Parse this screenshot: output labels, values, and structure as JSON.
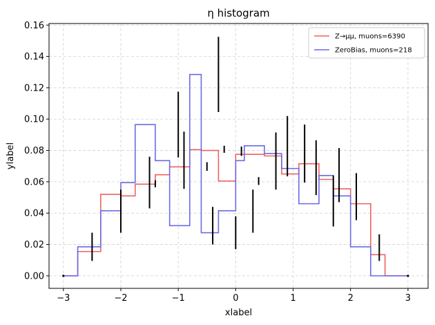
{
  "chart_data": {
    "type": "histogram",
    "title": "η histogram",
    "xlabel": "xlabel",
    "ylabel": "ylabel",
    "xlim": [
      -3.25,
      3.35
    ],
    "ylim": [
      -0.008,
      0.161
    ],
    "xticks": [
      -3,
      -2,
      -1,
      0,
      1,
      2,
      3
    ],
    "yticks": [
      0.0,
      0.02,
      0.04,
      0.06,
      0.08,
      0.1,
      0.12,
      0.14,
      0.16
    ],
    "grid": true,
    "legend_position": "top-right",
    "bin_edges": [
      -3.0,
      -2.75,
      -2.35,
      -2.0,
      -1.75,
      -1.4,
      -1.15,
      -0.8,
      -0.6,
      -0.3,
      0.0,
      0.15,
      0.5,
      0.8,
      1.1,
      1.45,
      1.7,
      2.0,
      2.35,
      2.6,
      2.8,
      3.0
    ],
    "series": [
      {
        "name": "Z→μμ, muons=6390",
        "color": "#f06060",
        "values": [
          0.0,
          0.0155,
          0.052,
          0.051,
          0.0585,
          0.0645,
          0.0695,
          0.0805,
          0.08,
          0.0605,
          0.0775,
          0.0775,
          0.0765,
          0.065,
          0.0715,
          0.0615,
          0.0555,
          0.046,
          0.0135,
          0.0,
          0.0
        ]
      },
      {
        "name": "ZeroBias, muons=218",
        "color": "#6a6ae8",
        "values": [
          0.0,
          0.0185,
          0.0415,
          0.0595,
          0.0965,
          0.0735,
          0.032,
          0.1285,
          0.0275,
          0.0415,
          0.0735,
          0.083,
          0.078,
          0.0685,
          0.046,
          0.064,
          0.051,
          0.0185,
          0.0,
          0.0,
          0.0
        ]
      }
    ],
    "error_bars": [
      {
        "x": -3.0,
        "low": 0.0,
        "high": 0.0
      },
      {
        "x": -2.5,
        "low": 0.0095,
        "high": 0.0275
      },
      {
        "x": -2.0,
        "low": 0.0275,
        "high": 0.055
      },
      {
        "x": -1.5,
        "low": 0.043,
        "high": 0.076
      },
      {
        "x": -1.4,
        "low": 0.0565,
        "high": 0.061
      },
      {
        "x": -1.0,
        "low": 0.0755,
        "high": 0.1175
      },
      {
        "x": -0.9,
        "low": 0.0555,
        "high": 0.092
      },
      {
        "x": -0.5,
        "low": 0.067,
        "high": 0.0725
      },
      {
        "x": -0.4,
        "low": 0.02,
        "high": 0.044
      },
      {
        "x": -0.3,
        "low": 0.1045,
        "high": 0.1525
      },
      {
        "x": -0.2,
        "low": 0.0785,
        "high": 0.083
      },
      {
        "x": 0.0,
        "low": 0.017,
        "high": 0.038
      },
      {
        "x": 0.1,
        "low": 0.0765,
        "high": 0.0825
      },
      {
        "x": 0.3,
        "low": 0.0275,
        "high": 0.055
      },
      {
        "x": 0.4,
        "low": 0.058,
        "high": 0.063
      },
      {
        "x": 0.7,
        "low": 0.055,
        "high": 0.0915
      },
      {
        "x": 0.9,
        "low": 0.0635,
        "high": 0.102
      },
      {
        "x": 1.2,
        "low": 0.0595,
        "high": 0.0965
      },
      {
        "x": 1.4,
        "low": 0.0515,
        "high": 0.0865
      },
      {
        "x": 1.7,
        "low": 0.0315,
        "high": 0.064
      },
      {
        "x": 1.8,
        "low": 0.047,
        "high": 0.0815
      },
      {
        "x": 2.1,
        "low": 0.0355,
        "high": 0.0655
      },
      {
        "x": 2.5,
        "low": 0.0095,
        "high": 0.0265
      },
      {
        "x": 3.0,
        "low": 0.0,
        "high": 0.0
      }
    ]
  }
}
